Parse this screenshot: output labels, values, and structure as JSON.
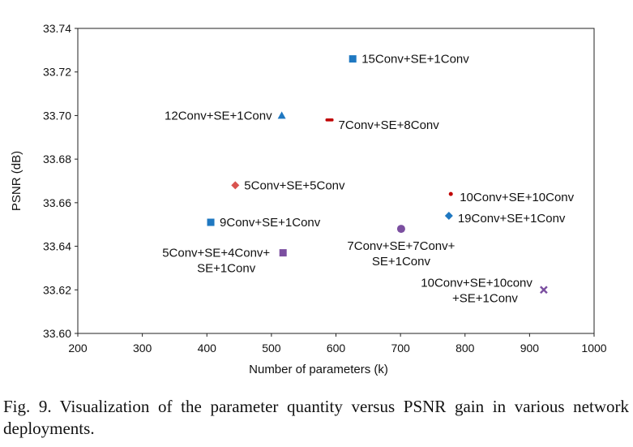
{
  "chart_data": {
    "type": "scatter",
    "xlabel": "Number of parameters (k)",
    "ylabel": "PSNR (dB)",
    "xlim": [
      200,
      1000
    ],
    "ylim": [
      33.6,
      33.74
    ],
    "xticks": [
      200,
      300,
      400,
      500,
      600,
      700,
      800,
      900,
      1000
    ],
    "yticks": [
      "33.60",
      "33.62",
      "33.64",
      "33.66",
      "33.68",
      "33.70",
      "33.72",
      "33.74"
    ],
    "grid": false,
    "points": [
      {
        "label": [
          "15Conv+SE+1Conv"
        ],
        "x": 626,
        "y": 33.726,
        "marker": "square",
        "color": "#1f78c1",
        "anchor": "right"
      },
      {
        "label": [
          "12Conv+SE+1Conv"
        ],
        "x": 516,
        "y": 33.7,
        "marker": "triangle",
        "color": "#1f78c1",
        "anchor": "left"
      },
      {
        "label": [
          "7Conv+SE+8Conv"
        ],
        "x": 590,
        "y": 33.698,
        "marker": "dash",
        "color": "#c00000",
        "anchor": "right"
      },
      {
        "label": [
          "5Conv+SE+5Conv"
        ],
        "x": 444,
        "y": 33.668,
        "marker": "diamond",
        "color": "#d9534f",
        "anchor": "right"
      },
      {
        "label": [
          "10Conv+SE+10Conv"
        ],
        "x": 778,
        "y": 33.664,
        "marker": "dot",
        "color": "#c00000",
        "anchor": "right"
      },
      {
        "label": [
          "19Conv+SE+1Conv"
        ],
        "x": 775,
        "y": 33.654,
        "marker": "diamond",
        "color": "#1f78c1",
        "anchor": "right"
      },
      {
        "label": [
          "9Conv+SE+1Conv"
        ],
        "x": 406,
        "y": 33.651,
        "marker": "square",
        "color": "#1f78c1",
        "anchor": "right"
      },
      {
        "label": [
          "7Conv+SE+7Conv+",
          "SE+1Conv"
        ],
        "x": 701,
        "y": 33.648,
        "marker": "circle",
        "color": "#7b4fa0",
        "anchor": "below"
      },
      {
        "label": [
          "5Conv+SE+4Conv+",
          "SE+1Conv"
        ],
        "x": 518,
        "y": 33.637,
        "marker": "square",
        "color": "#7b4fa0",
        "anchor": "left"
      },
      {
        "label": [
          "10Conv+SE+10conv",
          "+SE+1Conv"
        ],
        "x": 922,
        "y": 33.62,
        "marker": "cross",
        "color": "#7b4fa0",
        "anchor": "left"
      }
    ]
  },
  "caption": {
    "label": "Fig. 9.",
    "text": "Visualization of the parameter quantity versus PSNR gain in various network deployments."
  }
}
